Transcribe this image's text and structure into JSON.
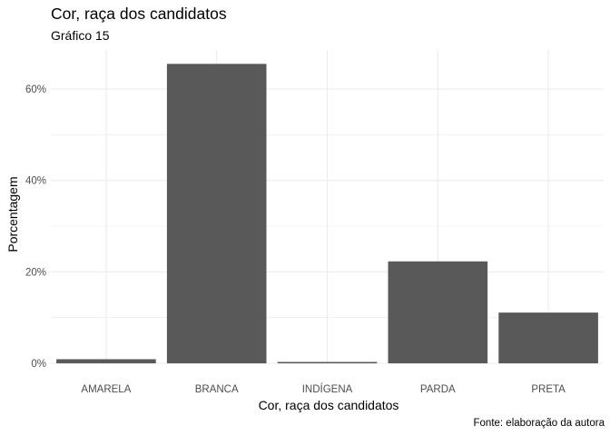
{
  "chart_data": {
    "type": "bar",
    "title": "Cor, raça dos candidatos",
    "subtitle": "Gráfico 15",
    "caption": "Fonte: elaboração da autora",
    "xlabel": "Cor, raça dos candidatos",
    "ylabel": "Porcentagem",
    "categories": [
      "AMARELA",
      "BRANCA",
      "INDÍGENA",
      "PARDA",
      "PRETA"
    ],
    "values": [
      0.9,
      65.5,
      0.3,
      22.3,
      11.1
    ],
    "ylim": [
      0,
      68
    ],
    "y_ticks": [
      0,
      20,
      40,
      60
    ],
    "y_tick_labels": [
      "0%",
      "20%",
      "40%",
      "60%"
    ],
    "grid": true,
    "bar_color": "#595959",
    "grid_color": "#ebebeb"
  }
}
